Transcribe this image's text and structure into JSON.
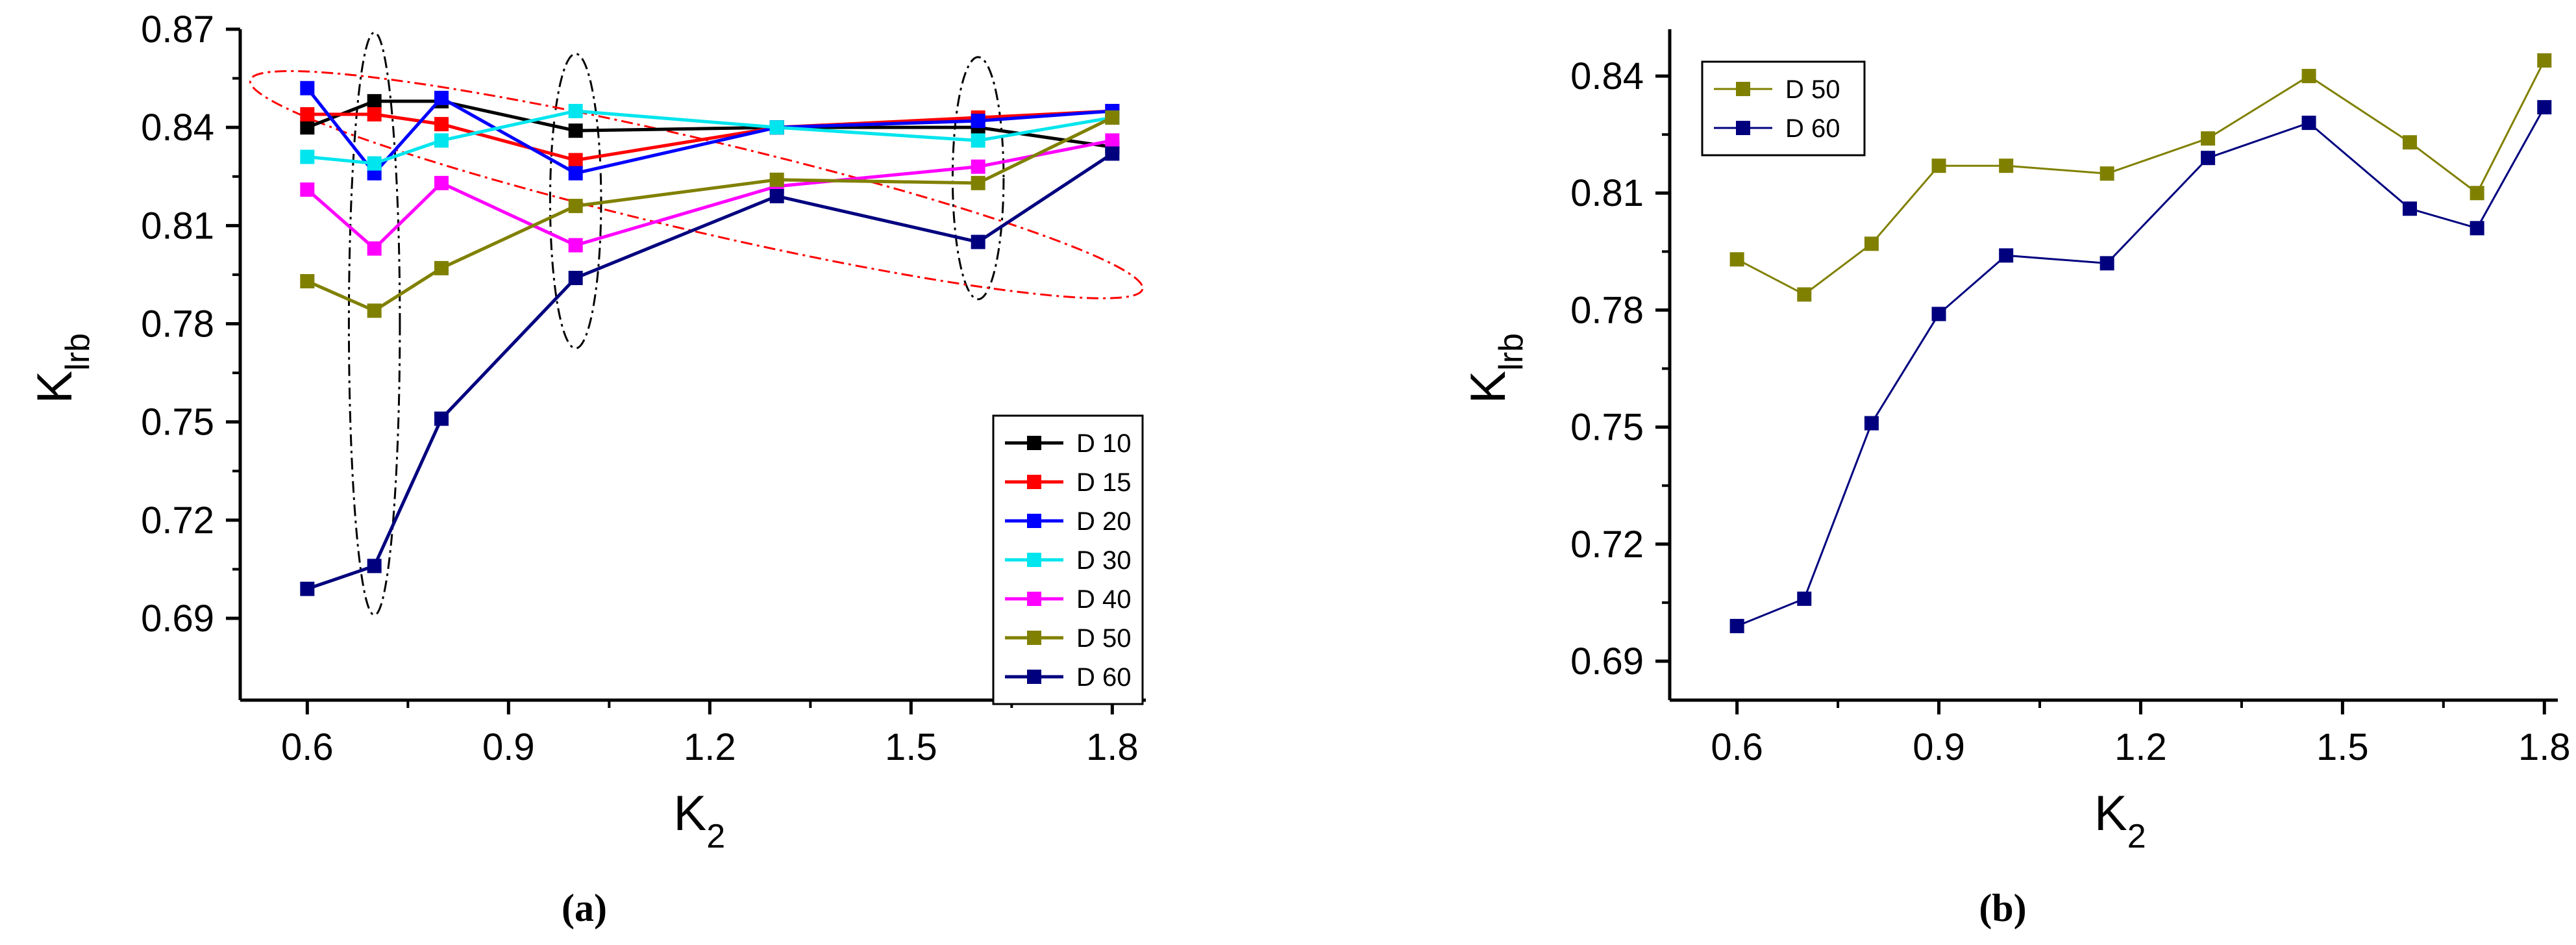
{
  "captions": [
    "(a)",
    "(b)"
  ],
  "chart_data": [
    {
      "type": "line",
      "ylabel": "K_lrb",
      "xlabel": "K_2",
      "xlim": [
        0.5,
        1.85
      ],
      "ylim": [
        0.665,
        0.87
      ],
      "xticks": [
        "0.6",
        "0.9",
        "1.2",
        "1.5",
        "1.8"
      ],
      "yticks": [
        "0.69",
        "0.72",
        "0.75",
        "0.78",
        "0.81",
        "0.84",
        "0.87"
      ],
      "legend_position": "bottom-right",
      "x": [
        0.6,
        0.7,
        0.8,
        1.0,
        1.3,
        1.6,
        1.8
      ],
      "series": [
        {
          "name": "D 10",
          "color": "#000000",
          "values": [
            0.84,
            0.848,
            0.848,
            0.839,
            0.84,
            0.84,
            0.834
          ]
        },
        {
          "name": "D 15",
          "color": "#ff0000",
          "values": [
            0.844,
            0.844,
            0.841,
            0.83,
            0.84,
            0.843,
            0.845
          ]
        },
        {
          "name": "D 20",
          "color": "#0000ff",
          "values": [
            0.852,
            0.826,
            0.849,
            0.826,
            0.84,
            0.842,
            0.845
          ]
        },
        {
          "name": "D 30",
          "color": "#00e5ee",
          "values": [
            0.831,
            0.829,
            0.836,
            0.845,
            0.84,
            0.836,
            0.843
          ]
        },
        {
          "name": "D 40",
          "color": "#ff00ff",
          "values": [
            0.821,
            0.803,
            0.823,
            0.804,
            0.822,
            0.828,
            0.836
          ]
        },
        {
          "name": "D 50",
          "color": "#808000",
          "values": [
            0.793,
            0.784,
            0.797,
            0.816,
            0.824,
            0.823,
            0.843
          ]
        },
        {
          "name": "D 60",
          "color": "#00007f",
          "values": [
            0.699,
            0.706,
            0.751,
            0.794,
            0.819,
            0.805,
            0.832
          ]
        }
      ],
      "annotations": [
        {
          "type": "dashed-ellipse",
          "color": "#000000",
          "cx": 0.7,
          "cy": 0.78,
          "rx": 0.038,
          "ry": 0.089
        },
        {
          "type": "dashed-ellipse",
          "color": "#000000",
          "cx": 1.0,
          "cy": 0.8175,
          "rx": 0.038,
          "ry": 0.045
        },
        {
          "type": "dashed-ellipse",
          "color": "#000000",
          "cx": 1.6,
          "cy": 0.8245,
          "rx": 0.038,
          "ry": 0.037
        },
        {
          "type": "dashed-ellipse-rotated",
          "color": "#ff0000",
          "cx": 1.18,
          "cy": 0.8225,
          "rx": 0.683,
          "ry": 0.014,
          "slope": -0.048
        }
      ]
    },
    {
      "type": "line",
      "ylabel": "K_lrb",
      "xlabel": "K_2",
      "xlim": [
        0.5,
        1.82
      ],
      "ylim": [
        0.68,
        0.852
      ],
      "xticks": [
        "0.6",
        "0.9",
        "1.2",
        "1.5",
        "1.8"
      ],
      "yticks": [
        "0.69",
        "0.72",
        "0.75",
        "0.78",
        "0.81",
        "0.84"
      ],
      "legend_position": "top-left",
      "x": [
        0.6,
        0.7,
        0.8,
        0.9,
        1.0,
        1.15,
        1.3,
        1.45,
        1.6,
        1.7,
        1.8
      ],
      "series": [
        {
          "name": "D 50",
          "color": "#808000",
          "values": [
            0.793,
            0.784,
            0.797,
            0.817,
            0.817,
            0.815,
            0.824,
            0.84,
            0.823,
            0.81,
            0.844
          ]
        },
        {
          "name": "D 60",
          "color": "#00007f",
          "values": [
            0.699,
            0.706,
            0.751,
            0.779,
            0.794,
            0.792,
            0.819,
            0.828,
            0.806,
            0.801,
            0.832
          ]
        }
      ]
    }
  ]
}
